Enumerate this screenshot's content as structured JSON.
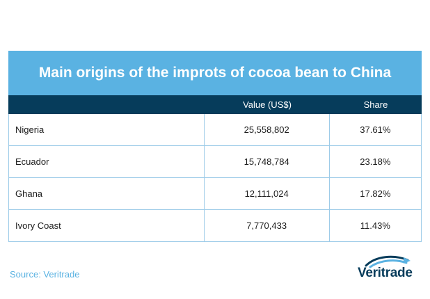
{
  "chart_data": {
    "type": "table",
    "title": "Main origins of the improts of cocoa bean to China",
    "columns": [
      "",
      "Value (US$)",
      "Share"
    ],
    "rows": [
      {
        "origin": "Nigeria",
        "value": "25,558,802",
        "share": "37.61%"
      },
      {
        "origin": "Ecuador",
        "value": "15,748,784",
        "share": "23.18%"
      },
      {
        "origin": "Ghana",
        "value": "12,111,024",
        "share": "17.82%"
      },
      {
        "origin": "Ivory Coast",
        "value": "7,770,433",
        "share": "11.43%"
      }
    ]
  },
  "footer": {
    "source": "Source: Veritrade",
    "logo_text": "Veritrade"
  },
  "colors": {
    "title_bg": "#5ab2e2",
    "header_bg": "#063c5b",
    "border": "#9ccbe8",
    "source_text": "#5ab2e2"
  },
  "icons": {
    "logo": "veritrade-logo-icon"
  }
}
